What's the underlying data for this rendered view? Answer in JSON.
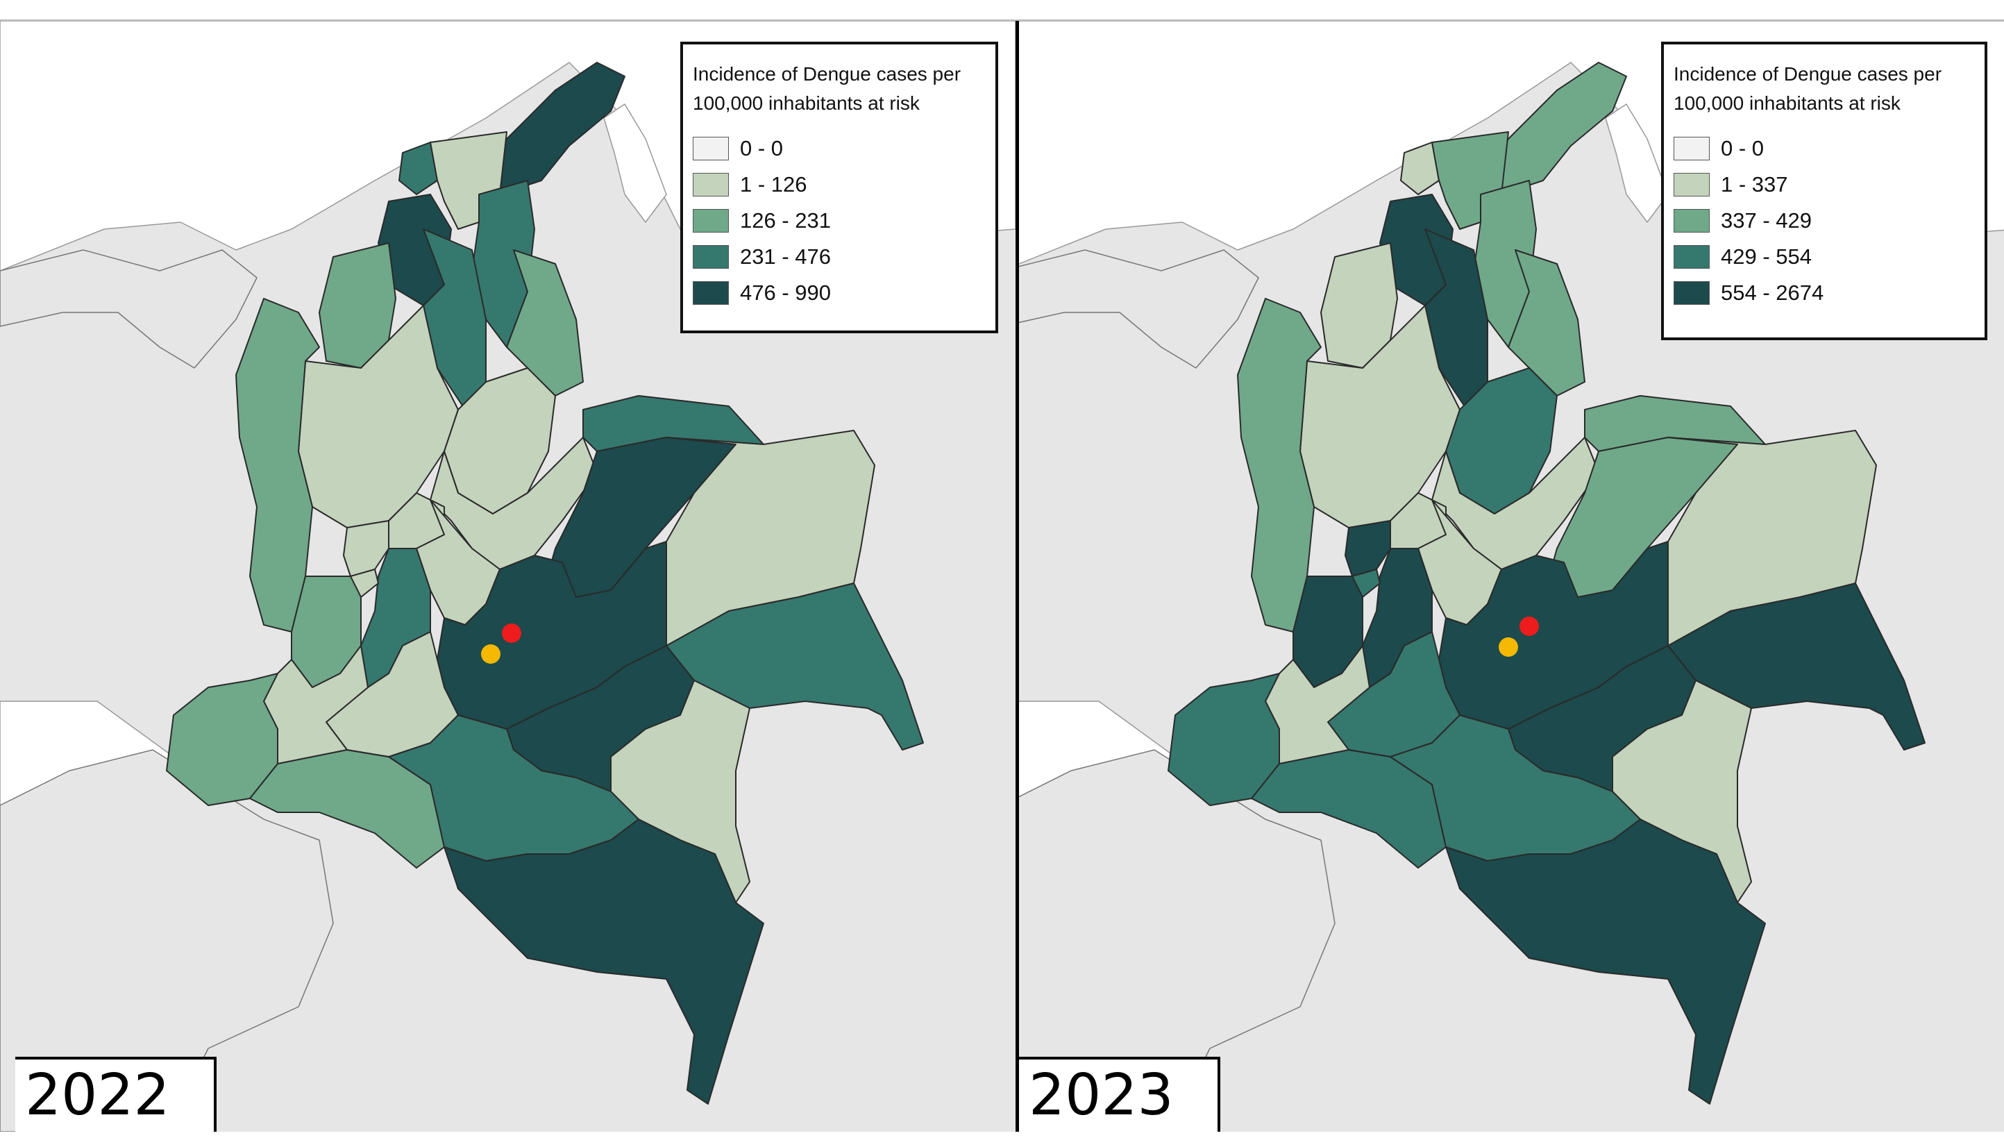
{
  "colors": {
    "class0": "#f2f2f2",
    "class1": "#c4d3bc",
    "class2": "#6fa98a",
    "class3": "#35786e",
    "class4": "#1c4a4d",
    "marker_red": "#ee1c1c",
    "marker_yellow": "#f6b800"
  },
  "panels": [
    {
      "year": "2022",
      "legend": {
        "title": "Incidence of Dengue cases per 100,000 inhabitants at risk",
        "classes": [
          "0 - 0",
          "1 - 126",
          "126 - 231",
          "231 - 476",
          "476 - 990"
        ]
      }
    },
    {
      "year": "2023",
      "legend": {
        "title": "Incidence of Dengue cases per 100,000 inhabitants at risk",
        "classes": [
          "0 - 0",
          "1 - 337",
          "337 - 429",
          "429 - 554",
          "554 - 2674"
        ]
      }
    }
  ],
  "region_classes": {
    "2022": {
      "guajira": 4,
      "atlantico": 3,
      "magdalena": 1,
      "cesar": 3,
      "bolivar": 3,
      "sucre": 4,
      "cordoba": 2,
      "norte_santander": 2,
      "antioquia": 1,
      "choco": 2,
      "santander": 1,
      "boyaca": 1,
      "arauca": 3,
      "casanare": 4,
      "vichada": 1,
      "caldas": 1,
      "risaralda": 1,
      "cundinamarca": 1,
      "tolima": 3,
      "valle": 2,
      "quindio": 1,
      "meta": 4,
      "guaviare": 4,
      "guainia": 3,
      "vaupes": 1,
      "cauca": 1,
      "huila": 1,
      "narino": 2,
      "putumayo": 2,
      "caqueta": 3,
      "amazonas": 4
    },
    "2023": {
      "guajira": 2,
      "atlantico": 1,
      "magdalena": 2,
      "cesar": 2,
      "bolivar": 4,
      "sucre": 4,
      "cordoba": 1,
      "norte_santander": 2,
      "antioquia": 1,
      "choco": 2,
      "santander": 3,
      "boyaca": 1,
      "arauca": 2,
      "casanare": 2,
      "vichada": 1,
      "caldas": 1,
      "risaralda": 4,
      "cundinamarca": 1,
      "tolima": 4,
      "valle": 4,
      "quindio": 3,
      "meta": 4,
      "guaviare": 4,
      "guainia": 4,
      "vaupes": 1,
      "cauca": 1,
      "huila": 3,
      "narino": 3,
      "putumayo": 3,
      "caqueta": 3,
      "amazonas": 4
    }
  },
  "markers": [
    {
      "color_key": "marker_red",
      "name": "red"
    },
    {
      "color_key": "marker_yellow",
      "name": "yellow"
    }
  ]
}
